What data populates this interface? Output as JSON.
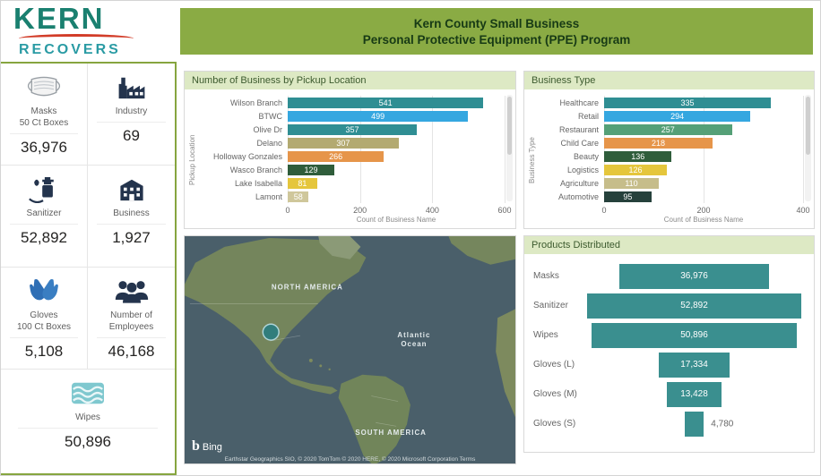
{
  "logo": {
    "kern": "KERN",
    "recovers": "RECOVERS"
  },
  "header": {
    "line1": "Kern County Small Business",
    "line2": "Personal Protective Equipment (PPE) Program"
  },
  "kpis": [
    {
      "id": "masks",
      "icon": "mask-icon",
      "label": [
        "Masks",
        "50 Ct Boxes"
      ],
      "value": "36,976"
    },
    {
      "id": "industry",
      "icon": "factory-icon",
      "label": [
        "Industry"
      ],
      "value": "69"
    },
    {
      "id": "sanitizer",
      "icon": "sanitizer-icon",
      "label": [
        "Sanitizer"
      ],
      "value": "52,892"
    },
    {
      "id": "business",
      "icon": "building-icon",
      "label": [
        "Business"
      ],
      "value": "1,927"
    },
    {
      "id": "gloves",
      "icon": "gloves-icon",
      "label": [
        "Gloves",
        "100 Ct Boxes"
      ],
      "value": "5,108"
    },
    {
      "id": "employees",
      "icon": "employees-icon",
      "label": [
        "Number of",
        "Employees"
      ],
      "value": "46,168"
    },
    {
      "id": "wipes",
      "icon": "wipes-icon",
      "label": [
        "Wipes"
      ],
      "value": "50,896",
      "span2": true
    }
  ],
  "chart_data": [
    {
      "type": "bar",
      "title": "Number of Business by Pickup Location",
      "orientation": "horizontal",
      "categories": [
        "Wilson Branch",
        "BTWC",
        "Olive Dr",
        "Delano",
        "Holloway Gonzales",
        "Wasco Branch",
        "Lake Isabella",
        "Lamont"
      ],
      "values": [
        541,
        499,
        357,
        307,
        266,
        129,
        81,
        58
      ],
      "colors": [
        "#2f8e93",
        "#35a7e0",
        "#2f8e93",
        "#b3aa71",
        "#e6954a",
        "#2f5d3b",
        "#e5c63c",
        "#cfc79b"
      ],
      "xlabel": "Count of Business Name",
      "ylabel": "Pickup Location",
      "xlim": [
        0,
        600
      ],
      "xticks": [
        0,
        200,
        400,
        600
      ],
      "grid": true,
      "legend": "none"
    },
    {
      "type": "bar",
      "title": "Business Type",
      "orientation": "horizontal",
      "categories": [
        "Healthcare",
        "Retail",
        "Restaurant",
        "Child Care",
        "Beauty",
        "Logistics",
        "Agriculture",
        "Automotive"
      ],
      "values": [
        335,
        294,
        257,
        218,
        136,
        126,
        110,
        95
      ],
      "colors": [
        "#2f8e93",
        "#35a7e0",
        "#55a077",
        "#e6954a",
        "#2f5d3b",
        "#e5c63c",
        "#c6bd8a",
        "#26413c"
      ],
      "xlabel": "Count of Business Name",
      "ylabel": "Business Type",
      "xlim": [
        0,
        400
      ],
      "xticks": [
        0,
        200,
        400
      ],
      "grid": true,
      "legend": "none"
    },
    {
      "type": "funnel",
      "title": "Products Distributed",
      "categories": [
        "Masks",
        "Sanitizer",
        "Wipes",
        "Gloves (L)",
        "Gloves (M)",
        "Gloves (S)"
      ],
      "values": [
        36976,
        52892,
        50896,
        17334,
        13428,
        4780
      ],
      "labels": [
        "36,976",
        "52,892",
        "50,896",
        "17,334",
        "13,428",
        "4,780"
      ],
      "color": "#3a8f8f",
      "legend": "none"
    }
  ],
  "map": {
    "labels": {
      "north_america": "NORTH AMERICA",
      "atlantic1": "Atlantic",
      "atlantic2": "Ocean",
      "south_america": "SOUTH AMERICA"
    },
    "bing": "Bing",
    "attribution": "Earthstar Geographics SIO, © 2020 TomTom © 2020 HERE, © 2020 Microsoft Corporation  Terms"
  }
}
